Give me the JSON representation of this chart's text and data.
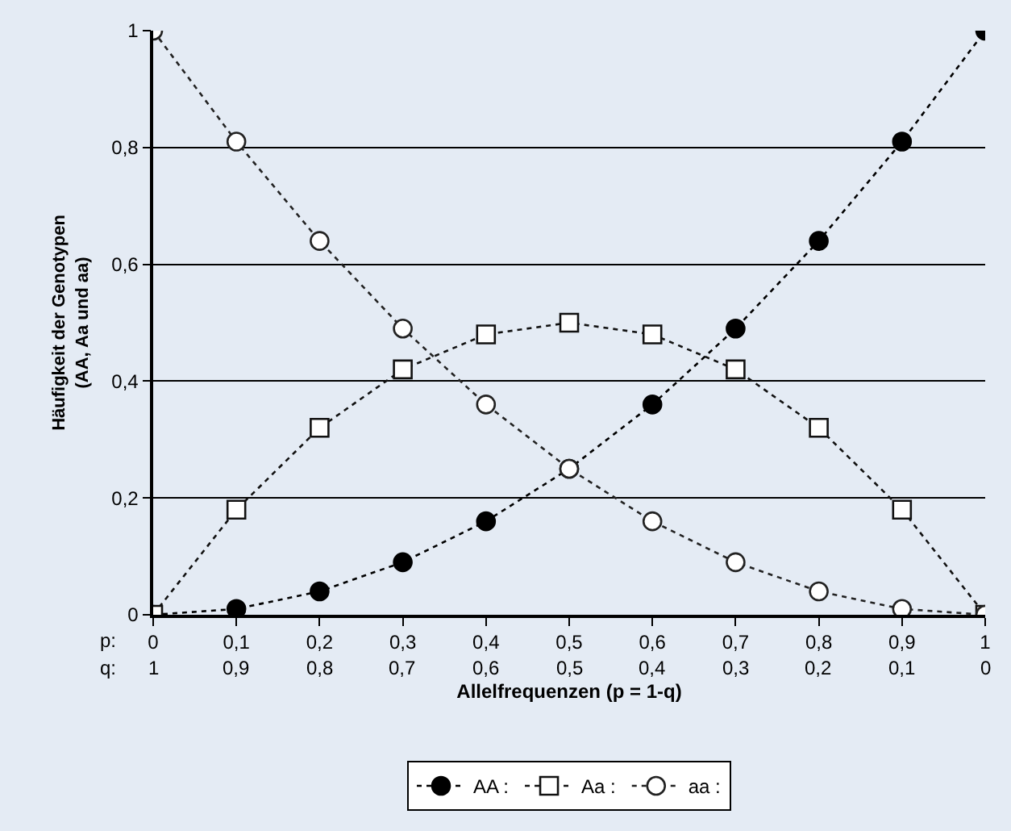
{
  "chart_data": {
    "type": "line",
    "xlabel": "Allelfrequenzen (p = 1-q)",
    "ylabel": "Häufigkeit der Genotypen\n(AA, Aa und aa)",
    "x": [
      0,
      0.1,
      0.2,
      0.3,
      0.4,
      0.5,
      0.6,
      0.7,
      0.8,
      0.9,
      1
    ],
    "series": [
      {
        "name": "AA :",
        "color": "#000000",
        "marker": "circle",
        "values": [
          0,
          0.01,
          0.04,
          0.09,
          0.16,
          0.25,
          0.36,
          0.49,
          0.64,
          0.81,
          1
        ]
      },
      {
        "name": "Aa :",
        "color": "#111111",
        "marker": "square",
        "colors": [
          "#ffffff",
          "#ffffff",
          "#ffffff",
          "#ffffff",
          "#ffffff",
          "#ffffff",
          "#ffffff",
          "#ffffff",
          "#ffffff",
          "#ffffff",
          "#ffffff"
        ],
        "values": [
          0,
          0.18,
          0.32,
          0.42,
          0.48,
          0.5,
          0.48,
          0.42,
          0.32,
          0.18,
          0
        ]
      },
      {
        "name": "aa :",
        "color": "#222222",
        "marker": "circle",
        "colors": [
          "#ffffff",
          "#ffffff",
          "#ffffff",
          "#ffffff",
          "#ffffff",
          "#ffffff",
          "#ffffff",
          "#ffffff",
          "#ffffff",
          "#ffffff",
          "#ffffff"
        ],
        "values": [
          1,
          0.81,
          0.64,
          0.49,
          0.36,
          0.25,
          0.16,
          0.09,
          0.04,
          0.01,
          0
        ]
      }
    ],
    "line_style": "dotted",
    "grid": "y",
    "legend": "bottom",
    "xlim": [
      0,
      1
    ],
    "ylim": [
      0,
      1
    ],
    "xticks": [
      0,
      {
        "value": 0.1,
        "label": "0,1"
      },
      {
        "value": 0.2,
        "label": "0,2"
      },
      {
        "value": 0.3,
        "label": "0,3"
      },
      {
        "value": 0.4,
        "label": "0,4"
      },
      {
        "value": 0.5,
        "label": "0,5"
      },
      {
        "value": 0.6,
        "label": "0,6"
      },
      {
        "value": 0.7,
        "label": "0,7"
      },
      {
        "value": 0.8,
        "label": "0,8"
      },
      {
        "value": 0.9,
        "label": "0,9"
      },
      1
    ],
    "yticks": [
      0,
      {
        "value": 0.2,
        "label": "0,2"
      },
      {
        "value": 0.4,
        "label": "0,4"
      },
      {
        "value": 0.6,
        "label": "0,6"
      },
      {
        "value": 0.8,
        "label": "0,8"
      },
      1
    ],
    "annotations": [
      "p:",
      "q:",
      "1",
      "0,9",
      "0,8",
      "0,7",
      "0,6",
      "0,5",
      "0,4",
      "0,3",
      "0,2",
      "0,1",
      "0"
    ]
  }
}
